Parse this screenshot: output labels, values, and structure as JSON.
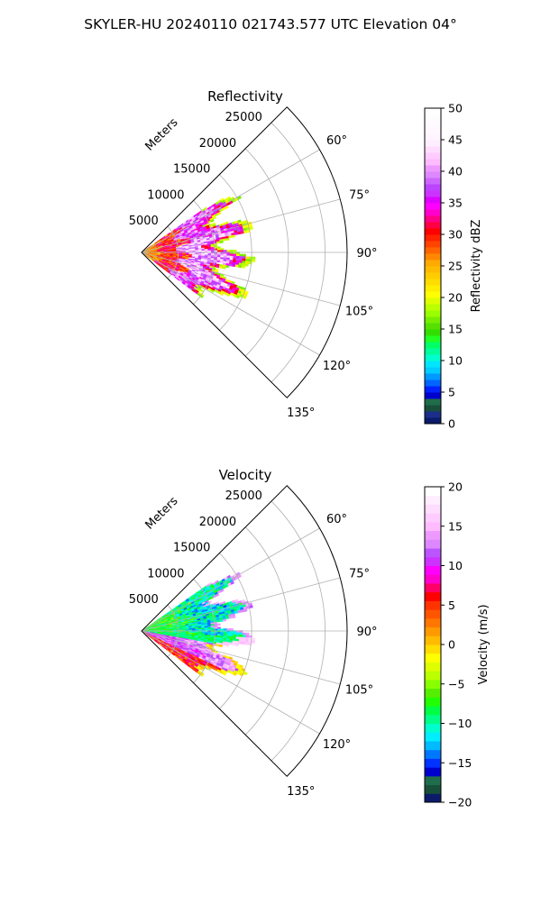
{
  "figure": {
    "title": "SKYLER-HU  20240110  021743.577 UTC Elevation 04°"
  },
  "chart_data": [
    {
      "type": "heatmap",
      "title": "Reflectivity",
      "radial_label": "Meters",
      "range_ticks": [
        "5000",
        "10000",
        "15000",
        "20000",
        "25000"
      ],
      "range_values": [
        5000,
        10000,
        15000,
        20000,
        25000
      ],
      "rmax": 28000,
      "azimuth_ticks": [
        "60°",
        "75°",
        "90°",
        "105°",
        "120°",
        "135°"
      ],
      "azimuth_values": [
        60,
        75,
        90,
        105,
        120,
        135
      ],
      "azimuth_range": [
        45,
        135
      ],
      "grid": true,
      "colorbar": {
        "label": "Reflectivity dBZ",
        "ticks": [
          "0",
          "5",
          "10",
          "15",
          "20",
          "25",
          "30",
          "35",
          "40",
          "45",
          "50"
        ],
        "range": [
          0,
          50
        ],
        "colors": [
          "#0b1b6a",
          "#1a2e8a",
          "#184f3b",
          "#1f6d4a",
          "#0000cc",
          "#0022ff",
          "#0066ff",
          "#0099ff",
          "#00ccff",
          "#00e6ff",
          "#00ffcc",
          "#00ff99",
          "#00ff66",
          "#22ff22",
          "#33dd00",
          "#55e000",
          "#77ee00",
          "#99ff00",
          "#bbff00",
          "#ddff00",
          "#ffff00",
          "#ffee00",
          "#ffdd00",
          "#ffcc00",
          "#ffbb00",
          "#ffaa00",
          "#ff8800",
          "#ff6600",
          "#ff4400",
          "#ff2200",
          "#ff0000",
          "#ff0044",
          "#ff0088",
          "#ff00cc",
          "#ff00ff",
          "#dd00ff",
          "#cc33ff",
          "#bb44ff",
          "#cc66ff",
          "#dd88ff",
          "#ee99ff",
          "#ffbbff",
          "#ffccff",
          "#ffddff",
          "#ffeeff",
          "#fff4ff",
          "#fff8ff",
          "#fffaff",
          "#fffcff",
          "#ffffff"
        ]
      },
      "field_extent_m": [
        2000,
        15500
      ],
      "field_azimuth": [
        55,
        127
      ]
    },
    {
      "type": "heatmap",
      "title": "Velocity",
      "radial_label": "Meters",
      "range_ticks": [
        "5000",
        "10000",
        "15000",
        "20000",
        "25000"
      ],
      "range_values": [
        5000,
        10000,
        15000,
        20000,
        25000
      ],
      "rmax": 28000,
      "azimuth_ticks": [
        "60°",
        "75°",
        "90°",
        "105°",
        "120°",
        "135°"
      ],
      "azimuth_values": [
        60,
        75,
        90,
        105,
        120,
        135
      ],
      "azimuth_range": [
        45,
        135
      ],
      "grid": true,
      "colorbar": {
        "label": "Velocity (m/s)",
        "ticks": [
          "−20",
          "−15",
          "−10",
          "−5",
          "0",
          "5",
          "10",
          "15",
          "20"
        ],
        "range": [
          -20,
          20
        ],
        "colors": [
          "#0b1b6a",
          "#184f3b",
          "#1f6d4a",
          "#0000cc",
          "#0033ff",
          "#0077ff",
          "#00bbff",
          "#00eeff",
          "#00ffcc",
          "#00ff88",
          "#00ff44",
          "#22ff00",
          "#55ee00",
          "#88ff00",
          "#bbff00",
          "#ddff00",
          "#ffff00",
          "#ffdd00",
          "#ffbb00",
          "#ff9900",
          "#ff7700",
          "#ff5500",
          "#ff3300",
          "#ff0000",
          "#ff0066",
          "#ff00cc",
          "#ff00ff",
          "#cc33ff",
          "#bb55ff",
          "#dd88ff",
          "#ee99ff",
          "#ffbbff",
          "#ffccff",
          "#ffddff",
          "#ffeeff",
          "#ffffff"
        ]
      },
      "field_extent_m": [
        2000,
        15500
      ],
      "field_azimuth": [
        55,
        127
      ]
    }
  ]
}
